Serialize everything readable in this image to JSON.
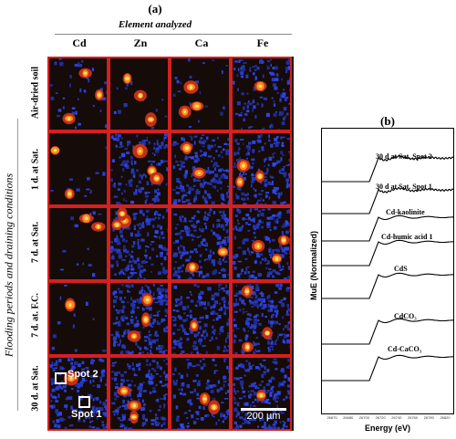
{
  "panel_a": {
    "label": "(a)",
    "column_heading": "Element analyzed",
    "row_heading": "Flooding periods and draining conditions",
    "columns": [
      "Cd",
      "Zn",
      "Ca",
      "Fe"
    ],
    "rows": [
      "Air-dried soil",
      "1 d. at Sat.",
      "7 d. at Sat.",
      "7 d. at. F.C.",
      "30 d. at Sat."
    ],
    "spot_labels": [
      "Spot 2",
      "Spot 1"
    ],
    "scalebar": "200 µm",
    "colors": {
      "background": "#1a0f0a",
      "low": "#2a3fd8",
      "high": "#ffe066",
      "border": "#d42020"
    }
  },
  "panel_b": {
    "label": "(b)",
    "y_label": "MuE (Normalized)",
    "x_label": "Energy (eV)",
    "x_ticks": [
      "26670",
      "26680",
      "26700",
      "26720",
      "26740",
      "26760",
      "26780",
      "26820"
    ],
    "spectra": [
      "30 d at Sat. Spot 2",
      "30 d at Sat. Spot 1",
      "Cd-kaolinite",
      "Cd-humic acid 1",
      "CdS",
      "CdCO₃",
      "Cd-CaCO₃"
    ]
  }
}
